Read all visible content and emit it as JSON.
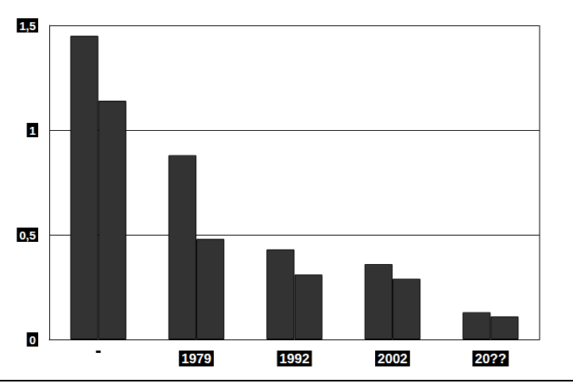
{
  "chart_data": {
    "type": "bar",
    "categories": [
      null,
      "1979",
      "1992",
      "2002",
      "20??"
    ],
    "series": [
      {
        "color": "#333333",
        "values": [
          1.45,
          0.88,
          0.43,
          0.36,
          0.13
        ]
      },
      {
        "color": "#333333",
        "values": [
          1.14,
          0.48,
          0.31,
          0.29,
          0.11
        ]
      }
    ],
    "ylim": [
      0,
      1.5
    ],
    "yticks": [
      0,
      {
        "value": 0.5,
        "label": "0,5"
      },
      1,
      {
        "value": 1.5,
        "label": "1,5"
      }
    ],
    "grid": true
  }
}
